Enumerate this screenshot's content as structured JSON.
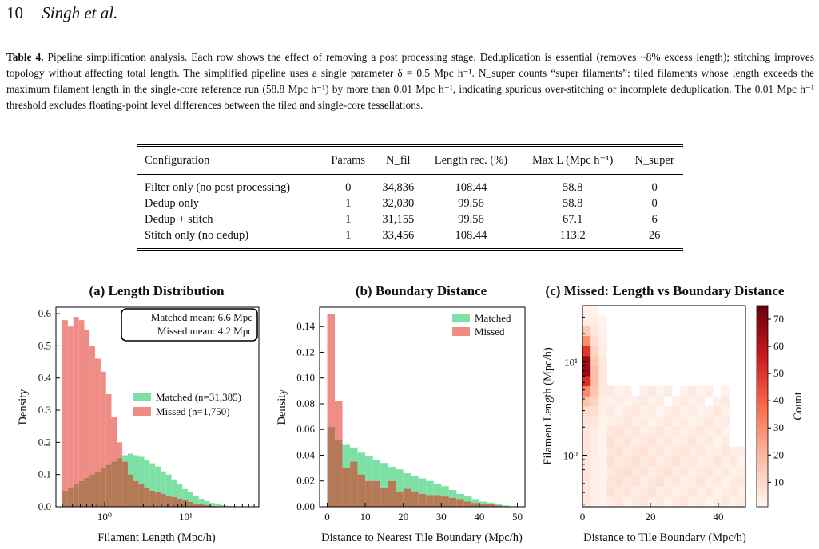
{
  "header": {
    "page_number": "10",
    "authors": "Singh et al."
  },
  "caption": {
    "label": "Table 4.",
    "text": "Pipeline simplification analysis. Each row shows the effect of removing a post processing stage. Deduplication is essential (removes ~8% excess length); stitching improves topology without affecting total length. The simplified pipeline uses a single parameter δ = 0.5 Mpc h⁻¹. N_super counts “super filaments”: tiled filaments whose length exceeds the maximum filament length in the single-core reference run (58.8 Mpc h⁻¹) by more than 0.01 Mpc h⁻¹, indicating spurious over-stitching or incomplete deduplication. The 0.01 Mpc h⁻¹ threshold excludes floating-point level differences between the tiled and single-core tessellations."
  },
  "table": {
    "headers": [
      "Configuration",
      "Params",
      "N_fil",
      "Length rec. (%)",
      "Max L (Mpc h⁻¹)",
      "N_super"
    ],
    "rows": [
      [
        "Filter only (no post processing)",
        "0",
        "34,836",
        "108.44",
        "58.8",
        "0"
      ],
      [
        "Dedup only",
        "1",
        "32,030",
        "99.56",
        "58.8",
        "0"
      ],
      [
        "Dedup + stitch",
        "1",
        "31,155",
        "99.56",
        "67.1",
        "6"
      ],
      [
        "Stitch only (no dedup)",
        "1",
        "33,456",
        "108.44",
        "113.2",
        "26"
      ]
    ]
  },
  "colors": {
    "matched": "#7fe0a6",
    "missed": "#f08c86",
    "overlap": "#b47a57"
  },
  "chart_data": [
    {
      "type": "histogram",
      "title": "(a) Length Distribution",
      "xlabel": "Filament Length (Mpc/h)",
      "ylabel": "Density",
      "xscale": "log",
      "xlim": [
        0.25,
        80
      ],
      "ylim": [
        0,
        0.62
      ],
      "yticks": [
        "0.0",
        "0.1",
        "0.2",
        "0.3",
        "0.4",
        "0.5",
        "0.6"
      ],
      "xticks": [
        "10⁰",
        "10¹"
      ],
      "bin_edges": [
        0.3,
        0.35,
        0.41,
        0.48,
        0.56,
        0.65,
        0.76,
        0.89,
        1.04,
        1.21,
        1.42,
        1.65,
        1.93,
        2.25,
        2.63,
        3.07,
        3.59,
        4.19,
        4.89,
        5.71,
        6.67,
        7.79,
        9.1,
        10.6,
        12.4,
        14.5,
        16.9,
        19.7,
        23.0,
        26.9,
        31.4,
        36.7,
        42.8,
        50.0
      ],
      "series": [
        {
          "name": "Matched (n=31,385)",
          "values": [
            0.05,
            0.06,
            0.07,
            0.08,
            0.09,
            0.1,
            0.11,
            0.12,
            0.13,
            0.14,
            0.15,
            0.16,
            0.165,
            0.16,
            0.155,
            0.145,
            0.135,
            0.125,
            0.11,
            0.1,
            0.085,
            0.07,
            0.055,
            0.045,
            0.035,
            0.025,
            0.018,
            0.012,
            0.008,
            0.005,
            0.003,
            0.002,
            0.001
          ]
        },
        {
          "name": "Missed (n=1,750)",
          "values": [
            0.58,
            0.56,
            0.59,
            0.58,
            0.55,
            0.5,
            0.46,
            0.42,
            0.35,
            0.28,
            0.2,
            0.14,
            0.1,
            0.08,
            0.07,
            0.06,
            0.05,
            0.045,
            0.04,
            0.035,
            0.03,
            0.025,
            0.02,
            0.015,
            0.01,
            0.008,
            0.005,
            0.003,
            0.002,
            0.001,
            0.0,
            0.0,
            0.0
          ]
        }
      ],
      "annotation": [
        "Matched mean: 6.6 Mpc",
        "Missed mean: 4.2 Mpc"
      ],
      "legend": "center-right"
    },
    {
      "type": "histogram",
      "title": "(b) Boundary Distance",
      "xlabel": "Distance to Nearest Tile Boundary (Mpc/h)",
      "ylabel": "Density",
      "xlim": [
        -2,
        52
      ],
      "ylim": [
        0,
        0.155
      ],
      "yticks": [
        "0.00",
        "0.02",
        "0.04",
        "0.06",
        "0.08",
        "0.10",
        "0.12",
        "0.14"
      ],
      "xticks": [
        "0",
        "10",
        "20",
        "30",
        "40",
        "50"
      ],
      "bin_start": 0,
      "bin_width": 2,
      "series": [
        {
          "name": "Matched",
          "values": [
            0.062,
            0.052,
            0.048,
            0.046,
            0.042,
            0.039,
            0.036,
            0.034,
            0.031,
            0.029,
            0.026,
            0.024,
            0.022,
            0.02,
            0.018,
            0.016,
            0.013,
            0.01,
            0.008,
            0.006,
            0.004,
            0.003,
            0.002,
            0.001
          ]
        },
        {
          "name": "Missed",
          "values": [
            0.15,
            0.082,
            0.03,
            0.035,
            0.025,
            0.02,
            0.02,
            0.015,
            0.02,
            0.012,
            0.014,
            0.012,
            0.01,
            0.009,
            0.009,
            0.008,
            0.007,
            0.006,
            0.004,
            0.003,
            0.002,
            0.002,
            0.001,
            0.0
          ]
        }
      ],
      "legend": "top-right"
    },
    {
      "type": "heatmap",
      "title": "(c) Missed: Length vs Boundary Distance",
      "xlabel": "Distance to Tile Boundary (Mpc/h)",
      "ylabel": "Filament Length (Mpc/h)",
      "yscale": "log",
      "xlim": [
        0,
        48
      ],
      "ylim_log10": [
        -0.55,
        1.6
      ],
      "xticks": [
        "0",
        "20",
        "40"
      ],
      "yticks": [
        "10⁰",
        "10¹"
      ],
      "colorbar_label": "Count",
      "colorbar_ticks": [
        "10",
        "20",
        "30",
        "40",
        "50",
        "60",
        "70"
      ],
      "colorbar_range": [
        1,
        75
      ]
    }
  ]
}
